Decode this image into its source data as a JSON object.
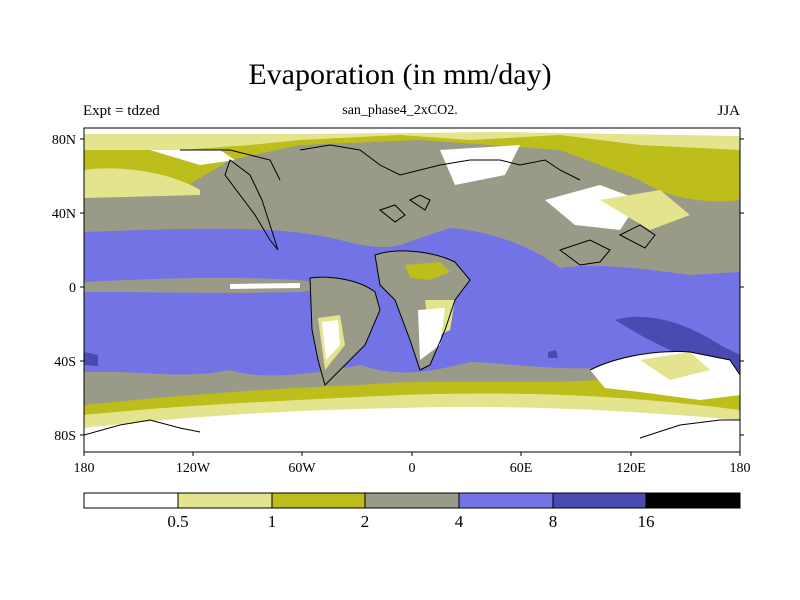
{
  "header": {
    "title": "Evaporation (in mm/day)",
    "subtitle": "san_phase4_2xCO2.",
    "left": "Expt = tdzed",
    "right": "JJA"
  },
  "axes": {
    "lat_labels": [
      "80N",
      "40N",
      "0",
      "40S",
      "80S"
    ],
    "lon_labels": [
      "180",
      "120W",
      "60W",
      "0",
      "60E",
      "120E",
      "180"
    ]
  },
  "colorbar": {
    "colors": [
      "#ffffff",
      "#e4e48e",
      "#bdbd1b",
      "#9a9a88",
      "#7373e6",
      "#4a4ab0",
      "#000000"
    ],
    "levels": [
      "0.5",
      "1",
      "2",
      "4",
      "8",
      "16"
    ]
  }
}
